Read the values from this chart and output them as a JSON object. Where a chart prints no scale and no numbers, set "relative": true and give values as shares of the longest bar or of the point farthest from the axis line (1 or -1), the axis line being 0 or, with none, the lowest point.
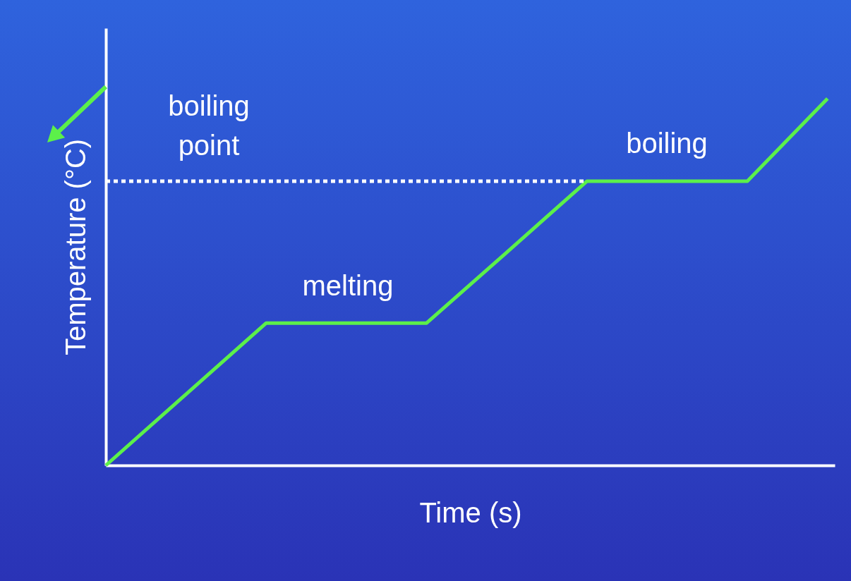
{
  "chart_data": {
    "type": "line",
    "relative": true,
    "xlabel": "Time (s)",
    "ylabel": "Temperature (°C)",
    "categories": [
      null,
      null,
      null,
      null,
      null,
      null,
      null,
      null,
      null,
      null
    ],
    "series": [
      {
        "color": "#5cf04a",
        "line_style": "solid",
        "values": [
          0,
          0.194,
          0.388,
          0.388,
          0.388,
          0.581,
          0.775,
          0.775,
          0.775,
          1
        ]
      },
      {
        "color": "#ffffff",
        "line_style": "dotted",
        "values": [
          0.775,
          0.775,
          0.775,
          0.775,
          0.775,
          0.775,
          0.775,
          null,
          null,
          null
        ]
      }
    ],
    "annotations": [
      "boiling point",
      "melting",
      "boiling"
    ]
  }
}
